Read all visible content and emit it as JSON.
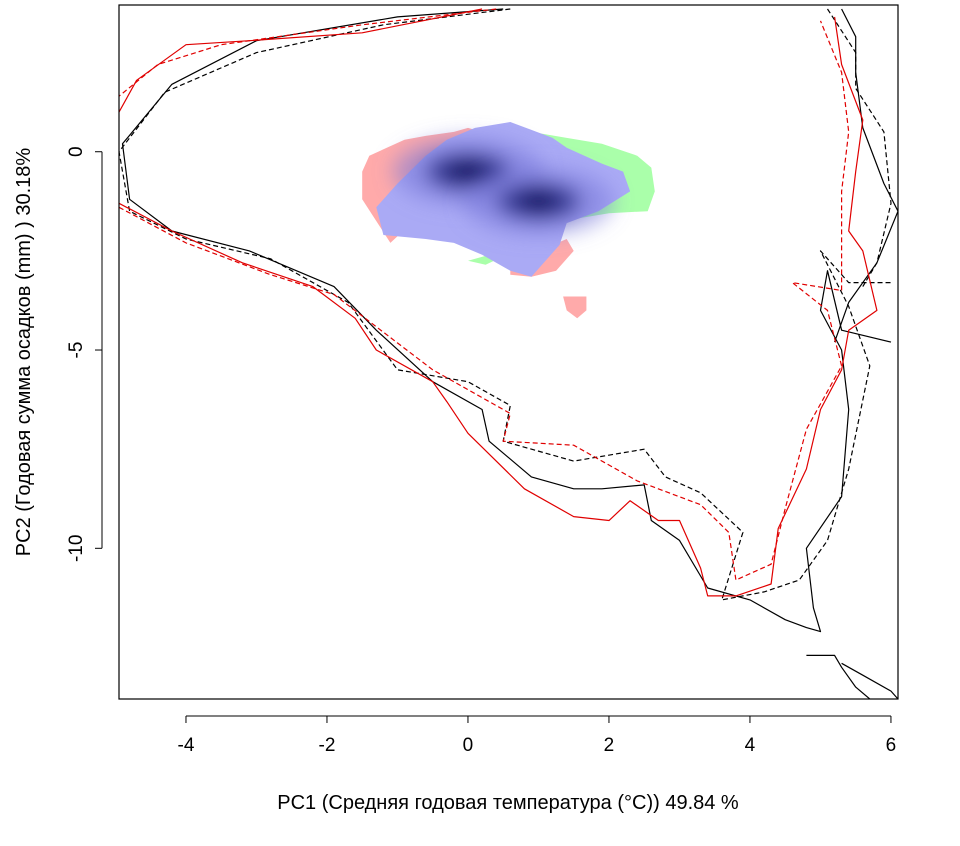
{
  "chart_data": {
    "type": "scatter",
    "title": "",
    "xlabel": "PC1 (Средняя годовая температура (°C)) 49.84 %",
    "ylabel": "PC2 (Годовая сумма осадков  (mm) ) 30.18%",
    "xlim": [
      -4.95,
      6.1
    ],
    "ylim": [
      -13.8,
      3.7
    ],
    "grid": false,
    "x_ticks": [
      -4,
      -2,
      0,
      2,
      4,
      6
    ],
    "y_ticks": [
      0,
      -5,
      -10
    ],
    "x_tick_labels": [
      "-4",
      "-2",
      "0",
      "2",
      "4",
      "6"
    ],
    "y_tick_labels": [
      "0",
      "-5",
      "-10"
    ],
    "colors": {
      "red_region": "#ffaaaa",
      "green_region": "#aaffaa",
      "overlap_region": "#aaaaf5",
      "density_dark": "#0a0f5a",
      "contour_black": "#000000",
      "contour_red": "#e00000"
    },
    "niche_regions": [
      {
        "color": "#ffaaaa",
        "outline": [
          [
            -1.5,
            -0.5
          ],
          [
            -1.4,
            -0.1
          ],
          [
            -0.9,
            0.3
          ],
          [
            -0.6,
            0.4
          ],
          [
            -0.2,
            0.5
          ],
          [
            0,
            0.6
          ],
          [
            0.2,
            0.5
          ],
          [
            0,
            0
          ],
          [
            -0.8,
            -1.8
          ],
          [
            -1.1,
            -2.3
          ],
          [
            -1.5,
            -1.2
          ]
        ]
      },
      {
        "color": "#ffaaaa",
        "outline": [
          [
            0.6,
            -2.6
          ],
          [
            1.0,
            -2.5
          ],
          [
            1.4,
            -2.2
          ],
          [
            1.5,
            -2.5
          ],
          [
            1.25,
            -3.0
          ],
          [
            0.9,
            -3.15
          ],
          [
            0.6,
            -3.1
          ]
        ]
      },
      {
        "color": "#ffaaaa",
        "outline": [
          [
            1.35,
            -3.65
          ],
          [
            1.68,
            -3.65
          ],
          [
            1.68,
            -4.0
          ],
          [
            1.55,
            -4.2
          ],
          [
            1.4,
            -4.0
          ]
        ]
      },
      {
        "color": "#aaffaa",
        "outline": [
          [
            0.9,
            0.5
          ],
          [
            1.4,
            0.35
          ],
          [
            1.9,
            0.2
          ],
          [
            2.4,
            -0.1
          ],
          [
            2.6,
            -0.4
          ],
          [
            2.65,
            -1.0
          ],
          [
            2.55,
            -1.5
          ],
          [
            2.0,
            -1.55
          ],
          [
            1.5,
            -1.7
          ],
          [
            0.5,
            -2.5
          ],
          [
            0.0,
            -2.75
          ],
          [
            0.25,
            -2.85
          ],
          [
            0.55,
            -2.6
          ]
        ]
      },
      {
        "color": "#aaaaf5",
        "outline": [
          [
            -1.0,
            -0.8
          ],
          [
            -0.6,
            -0.1
          ],
          [
            -0.3,
            0.3
          ],
          [
            0.1,
            0.6
          ],
          [
            0.6,
            0.75
          ],
          [
            0.9,
            0.55
          ],
          [
            1.2,
            0.35
          ],
          [
            1.4,
            0.1
          ],
          [
            1.9,
            -0.3
          ],
          [
            2.2,
            -0.5
          ],
          [
            2.3,
            -1.0
          ],
          [
            1.85,
            -1.5
          ],
          [
            1.4,
            -1.8
          ],
          [
            1.3,
            -2.35
          ],
          [
            0.9,
            -3.15
          ],
          [
            0.6,
            -3.0
          ],
          [
            0.2,
            -2.6
          ],
          [
            -0.2,
            -2.3
          ],
          [
            -0.6,
            -2.2
          ],
          [
            -1.2,
            -2.1
          ],
          [
            -1.3,
            -1.4
          ]
        ]
      }
    ],
    "density_peaks": [
      {
        "x": 0.0,
        "y": -0.5,
        "level": 1.0
      },
      {
        "x": 1.0,
        "y": -1.25,
        "level": 0.95
      }
    ],
    "contours": [
      {
        "color": "#000000",
        "dash": "solid",
        "points": [
          [
            0.5,
            3.6
          ],
          [
            -1.0,
            3.4
          ],
          [
            -3.0,
            2.8
          ],
          [
            -4.2,
            1.7
          ],
          [
            -4.9,
            0.2
          ],
          [
            -4.8,
            -1.2
          ],
          [
            -4.2,
            -2.0
          ],
          [
            -3.1,
            -2.5
          ],
          [
            -1.9,
            -3.4
          ],
          [
            -1.3,
            -4.5
          ],
          [
            -0.5,
            -5.8
          ],
          [
            0.2,
            -6.5
          ],
          [
            0.3,
            -7.3
          ],
          [
            0.9,
            -8.2
          ],
          [
            1.5,
            -8.5
          ],
          [
            1.9,
            -8.5
          ],
          [
            2.5,
            -8.4
          ],
          [
            2.6,
            -9.3
          ],
          [
            3.0,
            -9.8
          ],
          [
            3.4,
            -11.0
          ],
          [
            4.0,
            -11.3
          ],
          [
            4.5,
            -11.8
          ],
          [
            4.8,
            -12.0
          ],
          [
            5.0,
            -12.1
          ],
          [
            4.9,
            -11.5
          ],
          [
            4.8,
            -10.0
          ],
          [
            5.3,
            -8.7
          ],
          [
            5.4,
            -6.5
          ],
          [
            5.3,
            -5.0
          ],
          [
            5.0,
            -4.0
          ],
          [
            5.1,
            -3.0
          ],
          [
            5.3,
            -4.5
          ],
          [
            6.0,
            -4.8
          ]
        ]
      },
      {
        "color": "#000000",
        "dash": "solid",
        "points": [
          [
            5.3,
            3.6
          ],
          [
            5.5,
            2.9
          ],
          [
            5.5,
            2.0
          ],
          [
            5.6,
            0.6
          ],
          [
            5.9,
            -0.8
          ],
          [
            6.1,
            -1.5
          ],
          [
            5.8,
            -2.8
          ],
          [
            5.4,
            -3.8
          ],
          [
            5.2,
            -4.8
          ]
        ]
      },
      {
        "color": "#000000",
        "dash": "solid",
        "points": [
          [
            4.8,
            -12.7
          ],
          [
            5.2,
            -12.7
          ],
          [
            5.3,
            -13.0
          ],
          [
            5.5,
            -13.5
          ],
          [
            5.7,
            -13.8
          ]
        ]
      },
      {
        "color": "#000000",
        "dash": "solid",
        "points": [
          [
            5.3,
            -12.9
          ],
          [
            5.6,
            -13.2
          ],
          [
            6.0,
            -13.6
          ],
          [
            6.1,
            -13.8
          ]
        ]
      },
      {
        "color": "#000000",
        "dash": "dashed",
        "points": [
          [
            0.6,
            3.6
          ],
          [
            -1.2,
            3.2
          ],
          [
            -3.0,
            2.5
          ],
          [
            -4.3,
            1.5
          ],
          [
            -4.95,
            0.0
          ],
          [
            -4.8,
            -1.5
          ],
          [
            -4.0,
            -2.2
          ],
          [
            -2.8,
            -2.7
          ],
          [
            -1.7,
            -3.8
          ],
          [
            -1.0,
            -5.5
          ],
          [
            0.0,
            -5.8
          ],
          [
            0.6,
            -6.4
          ],
          [
            0.5,
            -7.3
          ],
          [
            1.5,
            -7.8
          ],
          [
            2.5,
            -7.5
          ],
          [
            2.8,
            -8.2
          ],
          [
            3.3,
            -8.6
          ],
          [
            3.9,
            -9.6
          ],
          [
            3.6,
            -11.3
          ],
          [
            4.2,
            -11.1
          ],
          [
            4.7,
            -10.8
          ],
          [
            5.1,
            -9.8
          ],
          [
            5.4,
            -8.0
          ],
          [
            5.7,
            -5.4
          ],
          [
            5.4,
            -3.9
          ],
          [
            5.0,
            -2.5
          ],
          [
            5.4,
            -3.3
          ],
          [
            6.0,
            -3.3
          ]
        ]
      },
      {
        "color": "#000000",
        "dash": "dashed",
        "points": [
          [
            5.1,
            3.6
          ],
          [
            5.5,
            2.5
          ],
          [
            5.5,
            1.6
          ],
          [
            5.9,
            0.5
          ],
          [
            6.0,
            -1.3
          ],
          [
            5.8,
            -2.8
          ],
          [
            5.6,
            -3.4
          ]
        ]
      },
      {
        "color": "#e00000",
        "dash": "solid",
        "points": [
          [
            0.2,
            3.6
          ],
          [
            -1.5,
            3.0
          ],
          [
            -3.1,
            2.8
          ],
          [
            -4.0,
            2.7
          ],
          [
            -4.7,
            1.8
          ],
          [
            -4.95,
            1.0
          ]
        ]
      },
      {
        "color": "#e00000",
        "dash": "solid",
        "points": [
          [
            -4.95,
            -1.3
          ],
          [
            -4.2,
            -2.0
          ],
          [
            -3.2,
            -2.8
          ],
          [
            -2.2,
            -3.4
          ],
          [
            -1.6,
            -4.2
          ],
          [
            -1.3,
            -5.0
          ],
          [
            -0.5,
            -5.8
          ],
          [
            -0.3,
            -6.3
          ],
          [
            0.0,
            -7.1
          ],
          [
            0.8,
            -8.5
          ],
          [
            1.5,
            -9.2
          ],
          [
            2.0,
            -9.3
          ],
          [
            2.3,
            -8.8
          ],
          [
            2.7,
            -9.3
          ],
          [
            3.0,
            -9.3
          ],
          [
            3.3,
            -10.5
          ],
          [
            3.4,
            -11.2
          ],
          [
            3.8,
            -11.2
          ],
          [
            4.3,
            -10.9
          ],
          [
            4.4,
            -9.5
          ],
          [
            4.8,
            -8.0
          ],
          [
            5.0,
            -6.5
          ],
          [
            5.3,
            -5.5
          ],
          [
            5.4,
            -4.5
          ],
          [
            5.8,
            -4.0
          ],
          [
            5.6,
            -2.5
          ],
          [
            5.4,
            -2.0
          ],
          [
            5.5,
            -0.5
          ],
          [
            5.6,
            0.8
          ],
          [
            5.3,
            2.2
          ],
          [
            5.2,
            3.4
          ]
        ]
      },
      {
        "color": "#e00000",
        "dash": "dashed",
        "points": [
          [
            0.4,
            3.6
          ],
          [
            -1.5,
            3.2
          ],
          [
            -3.5,
            2.7
          ],
          [
            -4.4,
            2.2
          ],
          [
            -4.95,
            1.4
          ]
        ]
      },
      {
        "color": "#e00000",
        "dash": "dashed",
        "points": [
          [
            -4.95,
            -1.4
          ],
          [
            -4.0,
            -2.3
          ],
          [
            -2.8,
            -3.1
          ],
          [
            -1.9,
            -3.6
          ],
          [
            -0.5,
            -5.5
          ],
          [
            0.6,
            -6.6
          ],
          [
            0.5,
            -7.3
          ],
          [
            1.5,
            -7.4
          ],
          [
            2.4,
            -8.3
          ],
          [
            3.3,
            -8.9
          ],
          [
            3.7,
            -9.6
          ],
          [
            3.8,
            -10.8
          ],
          [
            4.3,
            -10.4
          ],
          [
            4.5,
            -9.0
          ],
          [
            4.8,
            -7.0
          ],
          [
            5.3,
            -5.4
          ],
          [
            5.1,
            -4.0
          ],
          [
            4.6,
            -3.3
          ],
          [
            5.3,
            -3.5
          ],
          [
            5.3,
            -1.0
          ],
          [
            5.4,
            0.5
          ],
          [
            5.3,
            2.0
          ],
          [
            5.0,
            3.3
          ]
        ]
      }
    ]
  }
}
